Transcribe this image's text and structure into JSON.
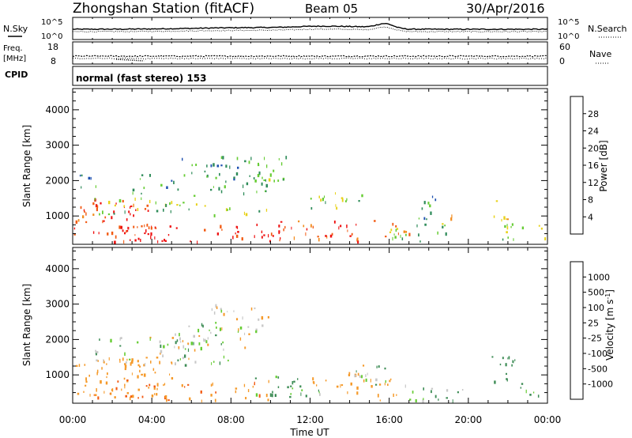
{
  "header": {
    "station": "Zhongshan Station (fitACF)",
    "beam": "Beam 05",
    "date": "30/Apr/2016"
  },
  "aux_panels": {
    "nsky_label": "N.Sky",
    "nsearch_label": "N.Search",
    "count_tick_top": "10^5",
    "count_tick_bottom": "10^0",
    "freq_label_top": "Freq.",
    "freq_label_bottom": "[MHz]",
    "freq_ticks": [
      "18",
      "8"
    ],
    "nave_label": "Nave",
    "nave_ticks": [
      "60",
      "0"
    ],
    "cpid_label": "CPID",
    "cpid_text": "normal (fast stereo) 153"
  },
  "colors": {
    "power": [
      "#0022ee",
      "#1e50b0",
      "#2f8c5a",
      "#66cc33",
      "#e8d21a",
      "#f28c1e",
      "#f25a12",
      "#ee1111"
    ],
    "velocity": [
      "#ee1111",
      "#f25a12",
      "#f59a2a",
      "#c8c8c8",
      "#c8c8c8",
      "#66cc33",
      "#3d8c55",
      "#1e50b0",
      "#0022ee"
    ]
  },
  "chart_data": [
    {
      "type": "heatmap",
      "panel": "power",
      "ylabel": "Slant Range [km]",
      "y_ticks": [
        1000,
        2000,
        3000,
        4000
      ],
      "ylim": [
        200,
        4600
      ],
      "x_ticks": [
        "00:00",
        "04:00",
        "08:00",
        "12:00",
        "16:00",
        "20:00",
        "00:00"
      ],
      "xlim_hours": [
        0,
        24
      ],
      "colorbar": {
        "label": "Power [dB]",
        "tick_labels": [
          "4",
          "8",
          "12",
          "16",
          "20",
          "24",
          "28"
        ],
        "range": [
          0,
          30
        ]
      },
      "blobs": [
        {
          "t": [
            0,
            4
          ],
          "r": [
            300,
            1500
          ],
          "level": 27
        },
        {
          "t": [
            1,
            11
          ],
          "r": [
            300,
            800
          ],
          "level": 29
        },
        {
          "t": [
            0.2,
            1.8
          ],
          "r": [
            900,
            1400
          ],
          "level": 23
        },
        {
          "t": [
            1,
            7
          ],
          "r": [
            1300,
            1600
          ],
          "level": 15
        },
        {
          "t": [
            1,
            10
          ],
          "r": [
            1050,
            1250
          ],
          "level": 13
        },
        {
          "t": [
            3,
            10
          ],
          "r": [
            1650,
            2200
          ],
          "level": 11
        },
        {
          "t": [
            5.5,
            9.5
          ],
          "r": [
            2200,
            2700
          ],
          "level": 8
        },
        {
          "t": [
            9,
            10.8
          ],
          "r": [
            2000,
            2800
          ],
          "level": 12
        },
        {
          "t": [
            10,
            14.5
          ],
          "r": [
            300,
            900
          ],
          "level": 25
        },
        {
          "t": [
            12,
            15
          ],
          "r": [
            1200,
            1700
          ],
          "level": 13
        },
        {
          "t": [
            15,
            17
          ],
          "r": [
            400,
            900
          ],
          "level": 22
        },
        {
          "t": [
            16,
            19
          ],
          "r": [
            300,
            800
          ],
          "level": 12
        },
        {
          "t": [
            18.5,
            19.2
          ],
          "r": [
            700,
            1100
          ],
          "level": 22
        },
        {
          "t": [
            21,
            22
          ],
          "r": [
            900,
            1500
          ],
          "level": 20
        },
        {
          "t": [
            21.5,
            23.9
          ],
          "r": [
            300,
            800
          ],
          "level": 14
        },
        {
          "t": [
            0.3,
            1.3
          ],
          "r": [
            1700,
            2200
          ],
          "level": 9
        },
        {
          "t": [
            17.2,
            18.6
          ],
          "r": [
            900,
            1600
          ],
          "level": 8
        }
      ]
    },
    {
      "type": "heatmap",
      "panel": "velocity",
      "ylabel": "Slant Range [km]",
      "y_ticks": [
        1000,
        2000,
        3000,
        4000
      ],
      "ylim": [
        200,
        4600
      ],
      "x_ticks": [
        "00:00",
        "04:00",
        "08:00",
        "12:00",
        "16:00",
        "20:00",
        "00:00"
      ],
      "xlim_hours": [
        0,
        24
      ],
      "xlabel": "Time UT",
      "colorbar": {
        "label": "Velocity [m s^-1]",
        "tick_labels": [
          "-1000",
          "-500",
          "-100",
          "-25",
          "25",
          "100",
          "500",
          "1000"
        ],
        "bins": [
          -1500,
          -1000,
          -500,
          -100,
          -25,
          25,
          100,
          500,
          1000,
          1500
        ]
      },
      "blobs": [
        {
          "t": [
            0,
            5
          ],
          "r": [
            400,
            1500
          ],
          "v": -300
        },
        {
          "t": [
            1,
            10
          ],
          "r": [
            300,
            900
          ],
          "v": -450
        },
        {
          "t": [
            1,
            8
          ],
          "r": [
            1300,
            2100
          ],
          "v": 0
        },
        {
          "t": [
            5,
            9.5
          ],
          "r": [
            1700,
            2500
          ],
          "v": -30
        },
        {
          "t": [
            7,
            10
          ],
          "r": [
            2300,
            3000
          ],
          "v": -60
        },
        {
          "t": [
            9,
            12
          ],
          "r": [
            400,
            1000
          ],
          "v": 250
        },
        {
          "t": [
            10.5,
            12.5
          ],
          "r": [
            300,
            700
          ],
          "v": 150
        },
        {
          "t": [
            12,
            14.5
          ],
          "r": [
            500,
            1100
          ],
          "v": -300
        },
        {
          "t": [
            14,
            16.5
          ],
          "r": [
            600,
            1300
          ],
          "v": 0
        },
        {
          "t": [
            15,
            17
          ],
          "r": [
            300,
            900
          ],
          "v": -200
        },
        {
          "t": [
            16.5,
            20
          ],
          "r": [
            300,
            700
          ],
          "v": 80
        },
        {
          "t": [
            21,
            22.5
          ],
          "r": [
            700,
            1600
          ],
          "v": 300
        },
        {
          "t": [
            21.3,
            21.7
          ],
          "r": [
            1800,
            2100
          ],
          "v": -700
        },
        {
          "t": [
            22.5,
            24
          ],
          "r": [
            300,
            800
          ],
          "v": 150
        }
      ]
    }
  ]
}
